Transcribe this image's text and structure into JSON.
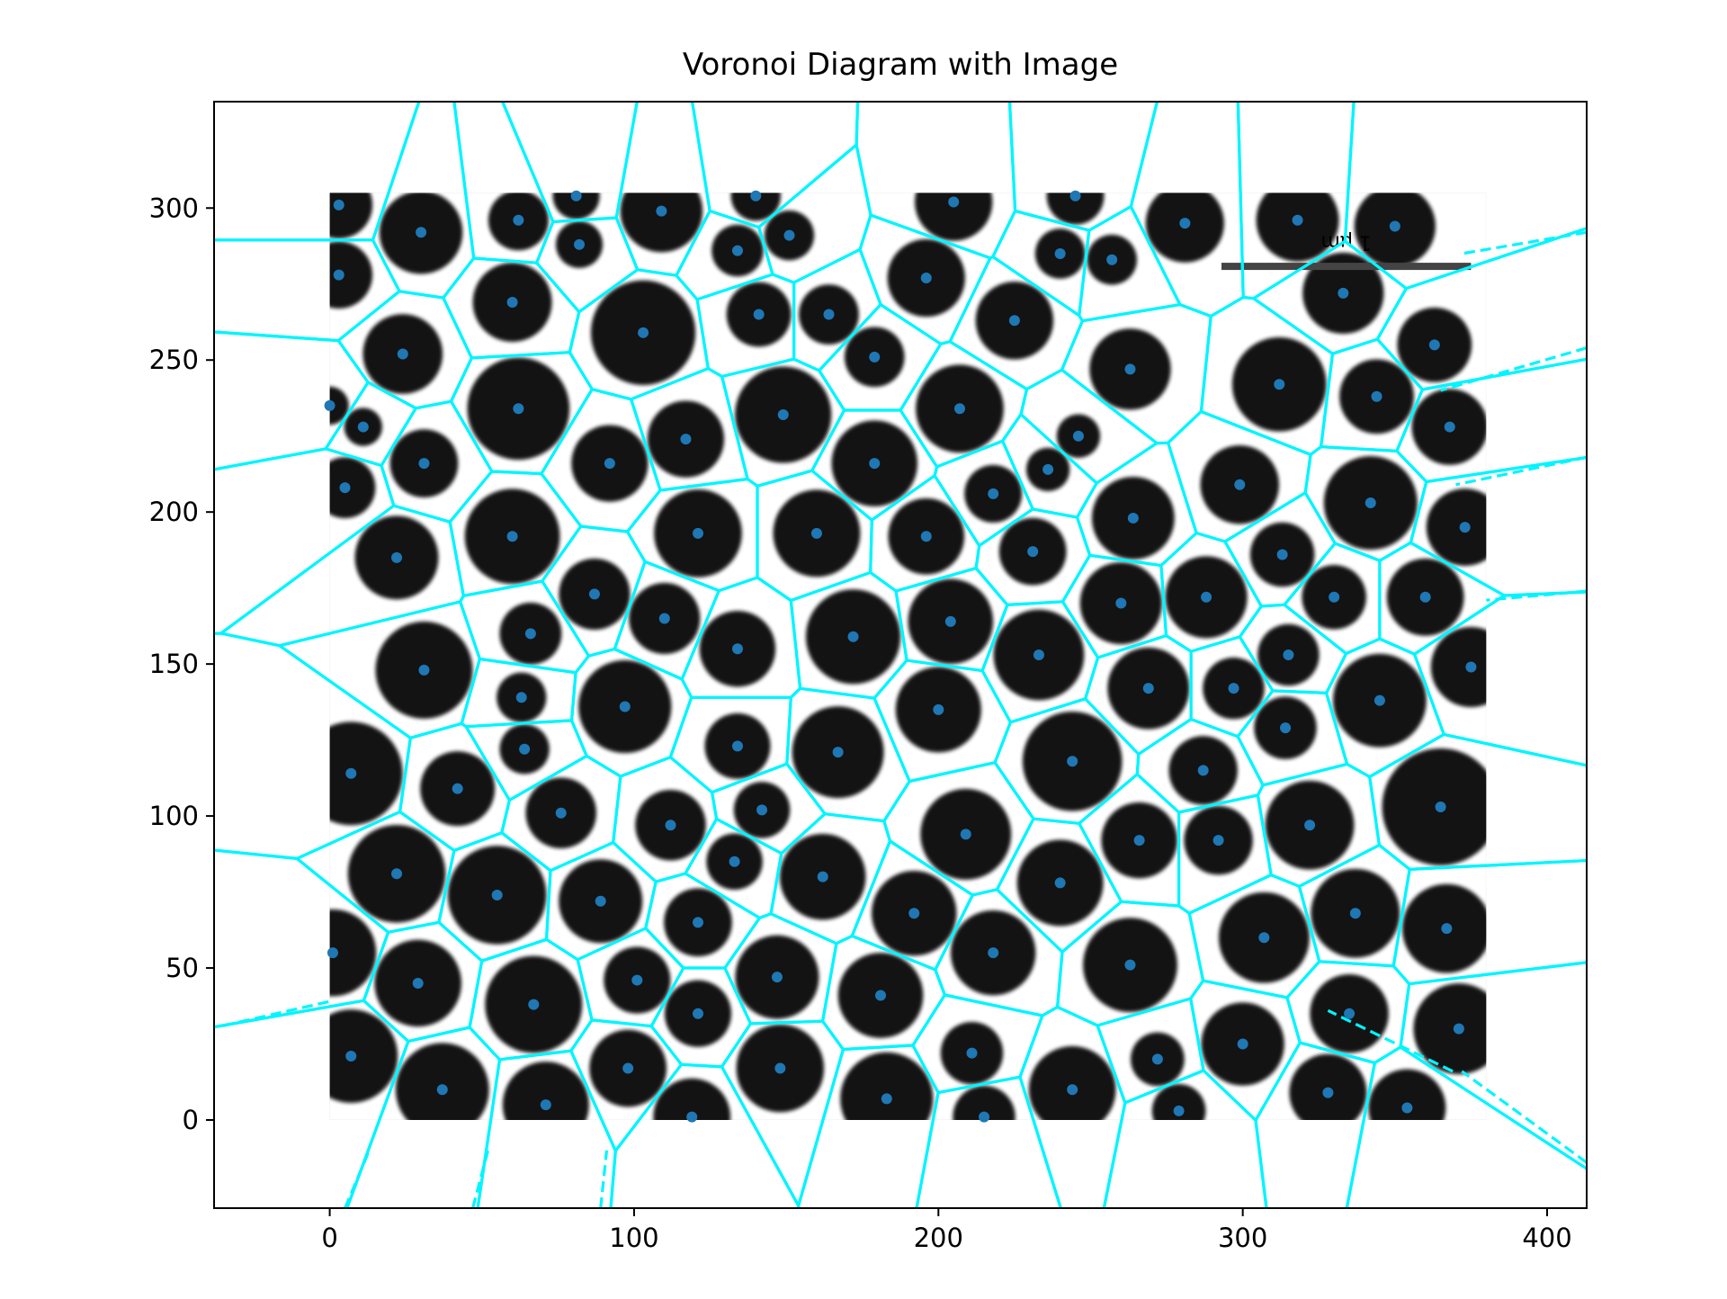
{
  "chart_data": {
    "type": "scatter",
    "title": "Voronoi Diagram with Image",
    "xlabel": "",
    "ylabel": "",
    "xlim": [
      -38,
      413
    ],
    "ylim": [
      -29,
      335
    ],
    "x_ticks": [
      0,
      100,
      200,
      300,
      400
    ],
    "y_ticks": [
      0,
      50,
      100,
      150,
      200,
      250,
      300
    ],
    "x_tick_labels": [
      "0",
      "100",
      "200",
      "300",
      "400"
    ],
    "y_tick_labels": [
      "0",
      "50",
      "100",
      "150",
      "200",
      "250",
      "300"
    ],
    "grid": false,
    "legend": "none",
    "background_image": {
      "description_icon": "porous-membrane-micrograph",
      "extent_x": [
        0,
        380
      ],
      "extent_y": [
        0,
        305
      ],
      "scale_bar_text": "1 μm"
    },
    "colors": {
      "points": "#1f77b4",
      "voronoi_edges": "#00f5ff",
      "pores": "#000000",
      "background": "#ffffff"
    },
    "series": [
      {
        "values": [
          [
            3,
            301
          ],
          [
            3,
            278
          ],
          [
            30,
            292
          ],
          [
            62,
            296
          ],
          [
            81,
            304
          ],
          [
            82,
            288
          ],
          [
            109,
            299
          ],
          [
            140,
            304
          ],
          [
            134,
            286
          ],
          [
            151,
            291
          ],
          [
            205,
            302
          ],
          [
            245,
            304
          ],
          [
            240,
            285
          ],
          [
            257,
            283
          ],
          [
            281,
            295
          ],
          [
            318,
            296
          ],
          [
            350,
            294
          ],
          [
            60,
            269
          ],
          [
            24,
            252
          ],
          [
            103,
            259
          ],
          [
            141,
            265
          ],
          [
            164,
            265
          ],
          [
            179,
            251
          ],
          [
            196,
            277
          ],
          [
            225,
            263
          ],
          [
            263,
            247
          ],
          [
            312,
            242
          ],
          [
            333,
            272
          ],
          [
            363,
            255
          ],
          [
            0,
            235
          ],
          [
            11,
            228
          ],
          [
            62,
            234
          ],
          [
            149,
            232
          ],
          [
            207,
            234
          ],
          [
            246,
            225
          ],
          [
            344,
            238
          ],
          [
            368,
            228
          ],
          [
            5,
            208
          ],
          [
            31,
            216
          ],
          [
            92,
            216
          ],
          [
            117,
            224
          ],
          [
            179,
            216
          ],
          [
            218,
            206
          ],
          [
            236,
            214
          ],
          [
            299,
            209
          ],
          [
            342,
            203
          ],
          [
            22,
            185
          ],
          [
            60,
            192
          ],
          [
            87,
            173
          ],
          [
            121,
            193
          ],
          [
            160,
            193
          ],
          [
            196,
            192
          ],
          [
            231,
            187
          ],
          [
            264,
            198
          ],
          [
            313,
            186
          ],
          [
            330,
            172
          ],
          [
            360,
            172
          ],
          [
            373,
            195
          ],
          [
            110,
            165
          ],
          [
            66,
            160
          ],
          [
            134,
            155
          ],
          [
            172,
            159
          ],
          [
            204,
            164
          ],
          [
            233,
            153
          ],
          [
            260,
            170
          ],
          [
            288,
            172
          ],
          [
            315,
            153
          ],
          [
            31,
            148
          ],
          [
            63,
            139
          ],
          [
            97,
            136
          ],
          [
            134,
            123
          ],
          [
            64,
            122
          ],
          [
            200,
            135
          ],
          [
            269,
            142
          ],
          [
            297,
            142
          ],
          [
            314,
            129
          ],
          [
            345,
            138
          ],
          [
            375,
            149
          ],
          [
            7,
            114
          ],
          [
            42,
            109
          ],
          [
            76,
            101
          ],
          [
            112,
            97
          ],
          [
            142,
            102
          ],
          [
            167,
            121
          ],
          [
            209,
            94
          ],
          [
            244,
            118
          ],
          [
            287,
            115
          ],
          [
            322,
            97
          ],
          [
            365,
            103
          ],
          [
            22,
            81
          ],
          [
            55,
            74
          ],
          [
            89,
            72
          ],
          [
            133,
            85
          ],
          [
            121,
            65
          ],
          [
            162,
            80
          ],
          [
            192,
            68
          ],
          [
            240,
            78
          ],
          [
            266,
            92
          ],
          [
            292,
            92
          ],
          [
            337,
            68
          ],
          [
            367,
            63
          ],
          [
            1,
            55
          ],
          [
            29,
            45
          ],
          [
            67,
            38
          ],
          [
            101,
            46
          ],
          [
            147,
            47
          ],
          [
            181,
            41
          ],
          [
            218,
            55
          ],
          [
            263,
            51
          ],
          [
            307,
            60
          ],
          [
            335,
            35
          ],
          [
            371,
            30
          ],
          [
            121,
            35
          ],
          [
            7,
            21
          ],
          [
            37,
            10
          ],
          [
            71,
            5
          ],
          [
            98,
            17
          ],
          [
            119,
            1
          ],
          [
            148,
            17
          ],
          [
            183,
            7
          ],
          [
            211,
            22
          ],
          [
            215,
            1
          ],
          [
            244,
            10
          ],
          [
            272,
            20
          ],
          [
            279,
            3
          ],
          [
            300,
            25
          ],
          [
            328,
            9
          ],
          [
            354,
            4
          ]
        ]
      }
    ],
    "voronoi_edges_solid": [
      [
        [
          30,
          334
        ],
        [
          16,
          245
        ]
      ],
      [
        [
          72,
          334
        ],
        [
          61,
          243
        ]
      ],
      [
        [
          101,
          334
        ],
        [
          81,
          236
        ]
      ],
      [
        [
          147,
          334
        ],
        [
          122,
          286
        ]
      ],
      [
        [
          165,
          334
        ],
        [
          150,
          286
        ]
      ],
      [
        [
          217,
          334
        ],
        [
          208,
          272
        ]
      ],
      [
        [
          233,
          334
        ],
        [
          237,
          296
        ]
      ],
      [
        [
          252,
          334
        ],
        [
          255,
          294
        ]
      ],
      [
        [
          308,
          334
        ],
        [
          306,
          272
        ]
      ],
      [
        [
          -38,
          286
        ],
        [
          33,
          292
        ]
      ],
      [
        [
          -38,
          261
        ],
        [
          4,
          256
        ]
      ],
      [
        [
          -38,
          213
        ],
        [
          0,
          221
        ]
      ],
      [
        [
          -38,
          160
        ],
        [
          -14,
          156
        ]
      ],
      [
        [
          -38,
          89
        ],
        [
          -10,
          86
        ]
      ],
      [
        [
          413,
          115
        ],
        [
          380,
          119
        ]
      ],
      [
        [
          413,
          85
        ],
        [
          357,
          81
        ]
      ],
      [
        [
          413,
          52
        ],
        [
          355,
          46
        ]
      ],
      [
        [
          47,
          -29
        ],
        [
          70,
          8
        ]
      ],
      [
        [
          115,
          -29
        ],
        [
          99,
          0
        ]
      ],
      [
        [
          176,
          -29
        ],
        [
          165,
          0
        ]
      ],
      [
        [
          200,
          -29
        ],
        [
          185,
          0
        ]
      ],
      [
        [
          228,
          -29
        ],
        [
          230,
          0
        ]
      ],
      [
        [
          260,
          -29
        ],
        [
          247,
          0
        ]
      ],
      [
        [
          286,
          -29
        ],
        [
          290,
          0
        ]
      ],
      [
        [
          323,
          -29
        ],
        [
          327,
          0
        ]
      ],
      [
        [
          345,
          -29
        ],
        [
          342,
          0
        ]
      ]
    ],
    "voronoi_edges_dashed": [
      [
        [
          -35,
          31
        ],
        [
          0,
          39
        ]
      ],
      [
        [
          5,
          -29
        ],
        [
          13,
          -10
        ]
      ],
      [
        [
          47,
          -29
        ],
        [
          52,
          -10
        ]
      ],
      [
        [
          89,
          -29
        ],
        [
          91,
          -10
        ]
      ],
      [
        [
          413,
          292
        ],
        [
          372,
          285
        ]
      ],
      [
        [
          413,
          254
        ],
        [
          365,
          240
        ]
      ],
      [
        [
          413,
          218
        ],
        [
          370,
          209
        ]
      ],
      [
        [
          413,
          174
        ],
        [
          380,
          171
        ]
      ],
      [
        [
          413,
          -14
        ],
        [
          372,
          16
        ]
      ],
      [
        [
          369,
          16
        ],
        [
          328,
          36
        ]
      ]
    ]
  }
}
